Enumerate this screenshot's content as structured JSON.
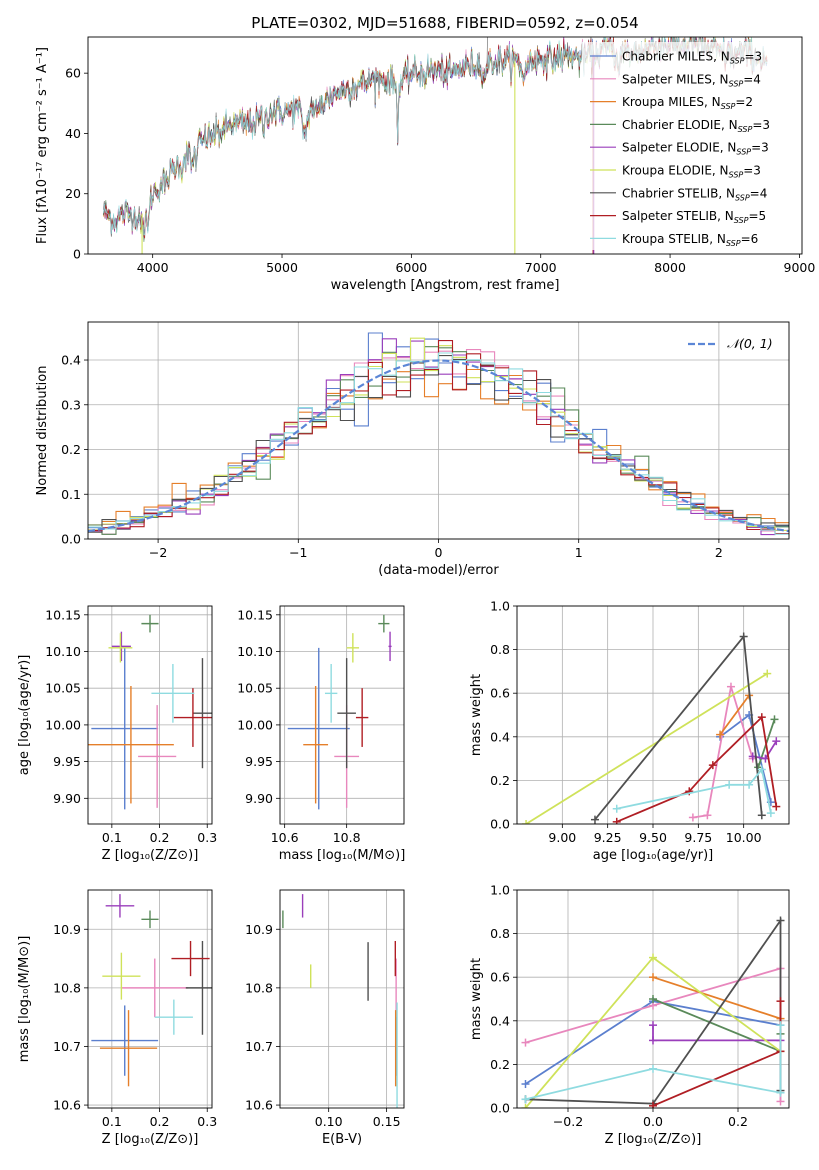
{
  "colors": [
    "#5b7fce",
    "#e887bd",
    "#e57f2a",
    "#5a8a5a",
    "#9a3ebb",
    "#cfe25a",
    "#505050",
    "#b01e24",
    "#8fdbe0"
  ],
  "chart_data": [
    {
      "id": "spectrum",
      "type": "line",
      "title": "PLATE=0302, MJD=51688, FIBERID=0592, z=0.054",
      "xlabel": "wavelength [Angstrom, rest frame]",
      "ylabel": "Flux [fλ10⁻¹⁷ erg cm⁻² s⁻¹ A⁻¹]",
      "xlim": [
        3500,
        9020
      ],
      "ylim": [
        0,
        72
      ],
      "xticks": [
        4000,
        5000,
        6000,
        7000,
        8000,
        9000
      ],
      "yticks": [
        0,
        20,
        40,
        60
      ],
      "grid": false,
      "legend_position": "upper right",
      "series": [
        {
          "name": "Chabrier MILES, N_SSP=3"
        },
        {
          "name": "Salpeter MILES, N_SSP=4"
        },
        {
          "name": "Kroupa MILES, N_SSP=2"
        },
        {
          "name": "Chabrier ELODIE, N_SSP=3"
        },
        {
          "name": "Salpeter ELODIE, N_SSP=3"
        },
        {
          "name": "Kroupa ELODIE, N_SSP=3"
        },
        {
          "name": "Chabrier STELIB, N_SSP=4"
        },
        {
          "name": "Salpeter STELIB, N_SSP=5"
        },
        {
          "name": "Kroupa STELIB, N_SSP=6"
        }
      ],
      "continuum": {
        "x": [
          3620,
          3700,
          3800,
          3900,
          4000,
          4100,
          4200,
          4300,
          4400,
          4500,
          4600,
          4700,
          4800,
          4900,
          5000,
          5100,
          5200,
          5300,
          5400,
          5500,
          5600,
          5700,
          5800,
          5900,
          6000,
          6100,
          6200,
          6300,
          6400,
          6500,
          6600,
          6700,
          6800,
          6900,
          7000,
          7100,
          7200,
          7300,
          7400,
          7500,
          7600,
          7700,
          7800,
          7900,
          8000,
          8100,
          8200,
          8300,
          8400,
          8500,
          8600,
          8700
        ],
        "y": [
          14,
          11,
          14,
          12,
          20,
          25,
          30,
          35,
          38,
          40,
          43,
          43,
          44,
          47,
          47,
          48,
          48,
          50,
          53,
          55,
          56,
          58,
          58,
          56,
          60,
          60,
          61,
          60,
          62,
          63,
          63,
          64,
          64,
          64,
          65,
          65,
          66,
          65,
          66,
          68,
          69,
          66,
          68,
          69,
          70,
          69,
          70,
          68,
          67,
          66,
          67,
          65
        ]
      }
    },
    {
      "id": "residuals",
      "type": "histogram",
      "xlabel": "(data-model)/error",
      "ylabel": "Normed distribution",
      "xlim": [
        -2.5,
        2.5
      ],
      "ylim": [
        0,
        0.485
      ],
      "xticks": [
        -2,
        -1,
        0,
        1,
        2
      ],
      "yticks": [
        0.0,
        0.1,
        0.2,
        0.3,
        0.4
      ],
      "grid": true,
      "legend": "𝒩(0, 1)",
      "bins": 50
    },
    {
      "id": "age_vs_Z",
      "type": "scatter",
      "xlabel": "Z [log₁₀(Z/Z⊙)]",
      "ylabel": "age  [log₁₀(age/yr)]",
      "xlim": [
        0.05,
        0.31
      ],
      "ylim": [
        9.865,
        10.162
      ],
      "xticks": [
        0.1,
        0.2,
        0.3
      ],
      "yticks": [
        9.9,
        9.95,
        10.0,
        10.05,
        10.1,
        10.15
      ],
      "points": [
        {
          "x": 0.127,
          "y": 9.995,
          "xerr": 0.07,
          "yerr": 0.11
        },
        {
          "x": 0.195,
          "y": 9.957,
          "xerr": 0.04,
          "yerr": 0.07
        },
        {
          "x": 0.14,
          "y": 9.973,
          "xerr": 0.09,
          "yerr": 0.08
        },
        {
          "x": 0.18,
          "y": 10.138,
          "xerr": 0.018,
          "yerr": 0.012
        },
        {
          "x": 0.12,
          "y": 10.107,
          "xerr": 0.02,
          "yerr": 0.02
        },
        {
          "x": 0.118,
          "y": 10.105,
          "xerr": 0.025,
          "yerr": 0.02
        },
        {
          "x": 0.29,
          "y": 10.016,
          "xerr": 0.02,
          "yerr": 0.075
        },
        {
          "x": 0.27,
          "y": 10.01,
          "xerr": 0.04,
          "yerr": 0.04
        },
        {
          "x": 0.228,
          "y": 10.043,
          "xerr": 0.045,
          "yerr": 0.04
        }
      ]
    },
    {
      "id": "age_vs_mass",
      "type": "scatter",
      "xlabel": "mass [log₁₀(M/M⊙)]",
      "ylabel": "",
      "xlim": [
        10.585,
        10.985
      ],
      "ylim": [
        9.865,
        10.162
      ],
      "xticks": [
        10.6,
        10.8
      ],
      "yticks": [
        9.9,
        9.95,
        10.0,
        10.05,
        10.1,
        10.15
      ],
      "points": [
        {
          "x": 10.71,
          "y": 9.995,
          "xerr": 0.1,
          "yerr": 0.11
        },
        {
          "x": 10.8,
          "y": 9.957,
          "xerr": 0.04,
          "yerr": 0.07
        },
        {
          "x": 10.7,
          "y": 9.973,
          "xerr": 0.04,
          "yerr": 0.08
        },
        {
          "x": 10.92,
          "y": 10.138,
          "xerr": 0.018,
          "yerr": 0.012
        },
        {
          "x": 10.94,
          "y": 10.107,
          "xerr": 0.005,
          "yerr": 0.02
        },
        {
          "x": 10.82,
          "y": 10.105,
          "xerr": 0.02,
          "yerr": 0.02
        },
        {
          "x": 10.8,
          "y": 10.016,
          "xerr": 0.03,
          "yerr": 0.075
        },
        {
          "x": 10.85,
          "y": 10.01,
          "xerr": 0.02,
          "yerr": 0.04
        },
        {
          "x": 10.75,
          "y": 10.043,
          "xerr": 0.02,
          "yerr": 0.04
        }
      ]
    },
    {
      "id": "weight_vs_age",
      "type": "line",
      "xlabel": "age  [log₁₀(age/yr)]",
      "ylabel": "mass weight",
      "xlim": [
        8.75,
        10.25
      ],
      "ylim": [
        0,
        1
      ],
      "xticks": [
        9.0,
        9.25,
        9.5,
        9.75,
        10.0
      ],
      "yticks": [
        0.0,
        0.2,
        0.4,
        0.6,
        0.8,
        1.0
      ],
      "series": [
        {
          "x": [
            9.87,
            10.03,
            10.15
          ],
          "y": [
            0.4,
            0.5,
            0.1
          ]
        },
        {
          "x": [
            9.72,
            9.8,
            9.93,
            10.05
          ],
          "y": [
            0.03,
            0.04,
            0.63,
            0.3
          ]
        },
        {
          "x": [
            9.87,
            10.03
          ],
          "y": [
            0.41,
            0.59
          ]
        },
        {
          "x": [
            10.08,
            10.17
          ],
          "y": [
            0.26,
            0.48
          ]
        },
        {
          "x": [
            10.05,
            10.12,
            10.18
          ],
          "y": [
            0.31,
            0.3,
            0.38
          ]
        },
        {
          "x": [
            8.8,
            10.13
          ],
          "y": [
            0.0,
            0.69
          ]
        },
        {
          "x": [
            9.18,
            10.0,
            10.1
          ],
          "y": [
            0.02,
            0.86,
            0.04
          ]
        },
        {
          "x": [
            9.3,
            9.7,
            9.83,
            10.1,
            10.18
          ],
          "y": [
            0.01,
            0.15,
            0.27,
            0.49,
            0.08
          ]
        },
        {
          "x": [
            9.3,
            9.92,
            10.03,
            10.1,
            10.15
          ],
          "y": [
            0.07,
            0.18,
            0.18,
            0.25,
            0.05
          ]
        }
      ]
    },
    {
      "id": "mass_vs_Z",
      "type": "scatter",
      "xlabel": "Z [log₁₀(Z/Z⊙)]",
      "ylabel": "mass [log₁₀(M/M⊙)]",
      "xlim": [
        0.05,
        0.31
      ],
      "ylim": [
        10.595,
        10.967
      ],
      "xticks": [
        0.1,
        0.2,
        0.3
      ],
      "yticks": [
        10.6,
        10.7,
        10.8,
        10.9
      ],
      "points": [
        {
          "x": 0.127,
          "y": 10.71,
          "xerr": 0.07,
          "yerr": 0.06
        },
        {
          "x": 0.19,
          "y": 10.8,
          "xerr": 0.07,
          "yerr": 0.05
        },
        {
          "x": 0.135,
          "y": 10.697,
          "xerr": 0.06,
          "yerr": 0.065
        },
        {
          "x": 0.18,
          "y": 10.917,
          "xerr": 0.018,
          "yerr": 0.015
        },
        {
          "x": 0.117,
          "y": 10.94,
          "xerr": 0.03,
          "yerr": 0.02
        },
        {
          "x": 0.12,
          "y": 10.82,
          "xerr": 0.04,
          "yerr": 0.04
        },
        {
          "x": 0.29,
          "y": 10.8,
          "xerr": 0.035,
          "yerr": 0.08
        },
        {
          "x": 0.265,
          "y": 10.85,
          "xerr": 0.04,
          "yerr": 0.03
        },
        {
          "x": 0.23,
          "y": 10.75,
          "xerr": 0.04,
          "yerr": 0.03
        }
      ]
    },
    {
      "id": "mass_vs_ebv",
      "type": "scatter",
      "xlabel": "E(B-V)",
      "ylabel": "",
      "xlim": [
        0.058,
        0.165
      ],
      "ylim": [
        10.595,
        10.967
      ],
      "xticks": [
        0.1,
        0.15
      ],
      "yticks": [
        10.6,
        10.7,
        10.8,
        10.9
      ],
      "points": [
        {
          "x": 0.1585,
          "y": 10.71,
          "yerr": 0.06
        },
        {
          "x": 0.1582,
          "y": 10.8,
          "yerr": 0.05
        },
        {
          "x": 0.1578,
          "y": 10.697,
          "yerr": 0.065
        },
        {
          "x": 0.0605,
          "y": 10.917,
          "yerr": 0.015
        },
        {
          "x": 0.0775,
          "y": 10.94,
          "yerr": 0.02
        },
        {
          "x": 0.0845,
          "y": 10.82,
          "yerr": 0.02
        },
        {
          "x": 0.134,
          "y": 10.828,
          "yerr": 0.05
        },
        {
          "x": 0.1575,
          "y": 10.85,
          "yerr": 0.03
        },
        {
          "x": 0.159,
          "y": 10.675,
          "yerr": 0.1
        }
      ]
    },
    {
      "id": "weight_vs_Z",
      "type": "line",
      "xlabel": "Z [log₁₀(Z/Z⊙)]",
      "ylabel": "mass weight",
      "xlim": [
        -0.32,
        0.32
      ],
      "ylim": [
        0,
        1
      ],
      "xticks": [
        -0.2,
        0.0,
        0.2
      ],
      "yticks": [
        0.0,
        0.2,
        0.4,
        0.6,
        0.8,
        1.0
      ],
      "series": [
        {
          "x": [
            -0.3,
            0.0,
            0.3
          ],
          "y": [
            0.11,
            0.49,
            0.38
          ]
        },
        {
          "x": [
            -0.3,
            0.0,
            0.3,
            0.3
          ],
          "y": [
            0.3,
            0.47,
            0.64,
            0.03
          ]
        },
        {
          "x": [
            0.0,
            0.3
          ],
          "y": [
            0.6,
            0.41
          ]
        },
        {
          "x": [
            0.0,
            0.3,
            0.3
          ],
          "y": [
            0.5,
            0.26,
            0.34
          ]
        },
        {
          "x": [
            0.0,
            0.0,
            0.3
          ],
          "y": [
            0.38,
            0.31,
            0.31
          ]
        },
        {
          "x": [
            -0.3,
            0.0,
            0.3
          ],
          "y": [
            0.0,
            0.69,
            0.26
          ]
        },
        {
          "x": [
            -0.3,
            0.0,
            0.3,
            0.3
          ],
          "y": [
            0.04,
            0.02,
            0.86,
            0.08
          ]
        },
        {
          "x": [
            0.0,
            0.3,
            0.3
          ],
          "y": [
            0.01,
            0.26,
            0.49
          ]
        },
        {
          "x": [
            -0.3,
            0.0,
            0.3,
            0.3
          ],
          "y": [
            0.04,
            0.18,
            0.07,
            0.38
          ]
        }
      ]
    }
  ]
}
